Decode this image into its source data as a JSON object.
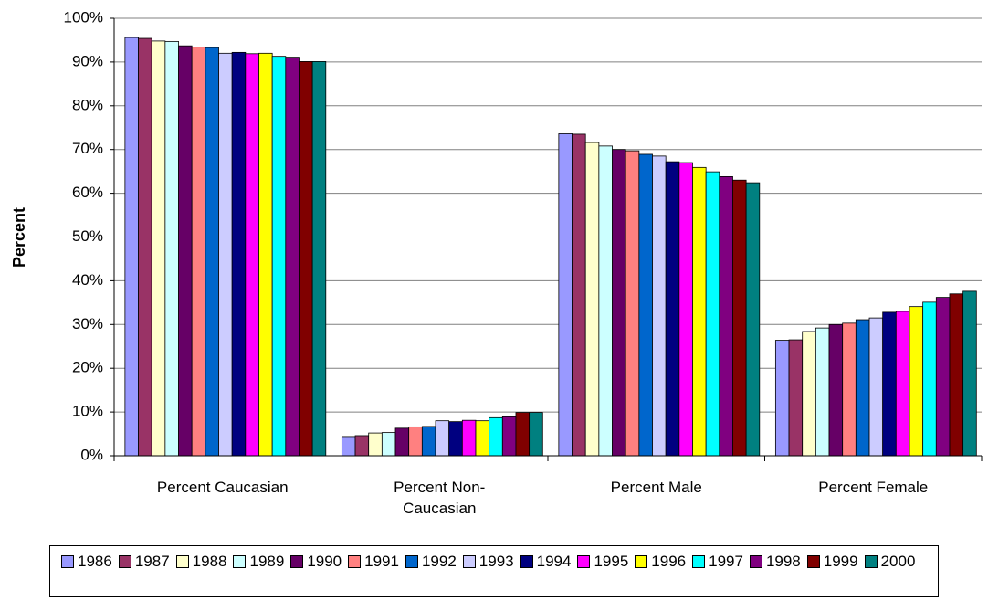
{
  "chart_data": {
    "type": "bar",
    "y_label": "Percent",
    "categories": [
      "Percent Caucasian",
      "Percent Non-Caucasian",
      "Percent Male",
      "Percent Female"
    ],
    "series": [
      {
        "name": "1986",
        "color": "#9999ff",
        "values": [
          95.6,
          4.4,
          73.6,
          26.4
        ]
      },
      {
        "name": "1987",
        "color": "#993366",
        "values": [
          95.4,
          4.6,
          73.5,
          26.5
        ]
      },
      {
        "name": "1988",
        "color": "#ffffcc",
        "values": [
          94.8,
          5.2,
          71.6,
          28.4
        ]
      },
      {
        "name": "1989",
        "color": "#ccffff",
        "values": [
          94.7,
          5.3,
          70.8,
          29.2
        ]
      },
      {
        "name": "1990",
        "color": "#660066",
        "values": [
          93.7,
          6.3,
          70.0,
          30.0
        ]
      },
      {
        "name": "1991",
        "color": "#ff8080",
        "values": [
          93.4,
          6.6,
          69.7,
          30.3
        ]
      },
      {
        "name": "1992",
        "color": "#0066cc",
        "values": [
          93.3,
          6.7,
          68.9,
          31.1
        ]
      },
      {
        "name": "1993",
        "color": "#ccccff",
        "values": [
          92.0,
          8.0,
          68.5,
          31.5
        ]
      },
      {
        "name": "1994",
        "color": "#000080",
        "values": [
          92.2,
          7.8,
          67.2,
          32.8
        ]
      },
      {
        "name": "1995",
        "color": "#ff00ff",
        "values": [
          91.9,
          8.1,
          67.0,
          33.0
        ]
      },
      {
        "name": "1996",
        "color": "#ffff00",
        "values": [
          92.0,
          8.0,
          65.9,
          34.1
        ]
      },
      {
        "name": "1997",
        "color": "#00ffff",
        "values": [
          91.3,
          8.7,
          64.9,
          35.1
        ]
      },
      {
        "name": "1998",
        "color": "#800080",
        "values": [
          91.1,
          8.9,
          63.8,
          36.2
        ]
      },
      {
        "name": "1999",
        "color": "#800000",
        "values": [
          90.1,
          9.9,
          63.0,
          37.0
        ]
      },
      {
        "name": "2000",
        "color": "#008080",
        "values": [
          90.1,
          9.9,
          62.4,
          37.6
        ]
      }
    ],
    "ylim": [
      0,
      100
    ],
    "yticks": [
      {
        "value": 0,
        "label": "0%"
      },
      {
        "value": 10,
        "label": "10%"
      },
      {
        "value": 20,
        "label": "20%"
      },
      {
        "value": 30,
        "label": "30%"
      },
      {
        "value": 40,
        "label": "40%"
      },
      {
        "value": 50,
        "label": "50%"
      },
      {
        "value": 60,
        "label": "60%"
      },
      {
        "value": 70,
        "label": "70%"
      },
      {
        "value": 80,
        "label": "80%"
      },
      {
        "value": 90,
        "label": "90%"
      },
      {
        "value": 100,
        "label": "100%"
      }
    ],
    "grid": true
  }
}
